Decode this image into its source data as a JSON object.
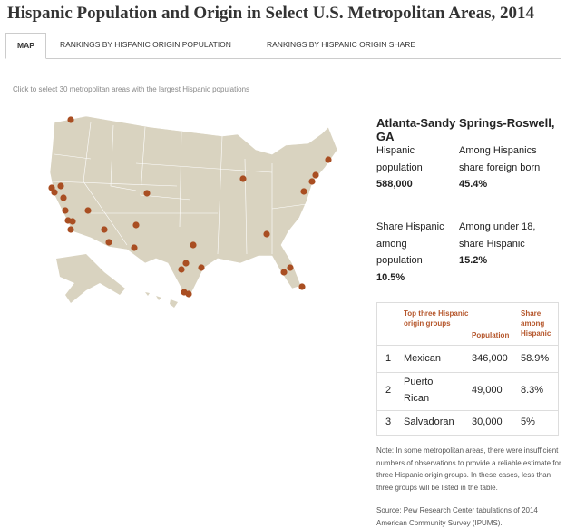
{
  "header": {
    "title": "Hispanic Population and Origin in Select U.S. Metropolitan Areas, 2014"
  },
  "tabs": [
    "MAP",
    "RANKINGS BY HISPANIC ORIGIN POPULATION",
    "RANKINGS BY HISPANIC ORIGIN SHARE"
  ],
  "instruction": "Click to select 30 metropolitan areas with the largest Hispanic populations",
  "detail": {
    "name": "Atlanta-Sandy Springs-Roswell, GA",
    "stats": [
      {
        "label": "Hispanic population",
        "value": "588,000"
      },
      {
        "label": "Among Hispanics share foreign born",
        "value": "45.4%"
      },
      {
        "label": "Share Hispanic among population",
        "value": "10.5%"
      },
      {
        "label": "Among under 18, share Hispanic",
        "value": "15.2%"
      }
    ]
  },
  "table": {
    "headers": [
      "Top three Hispanic origin groups",
      "Population",
      "Share among Hispanic"
    ],
    "rows": [
      [
        "1",
        "Mexican",
        "346,000",
        "58.9%"
      ],
      [
        "2",
        "Puerto Rican",
        "49,000",
        "8.3%"
      ],
      [
        "3",
        "Salvadoran",
        "30,000",
        "5%"
      ]
    ]
  },
  "note": "Note: In some metropolitan areas, there were insufficient numbers of observations to provide a reliable estimate for three Hispanic origin groups. In these cases, less than three groups will be listed in the table.",
  "source": "Source: Pew Research Center tabulations of 2014 American Community Survey (IPUMS)."
}
